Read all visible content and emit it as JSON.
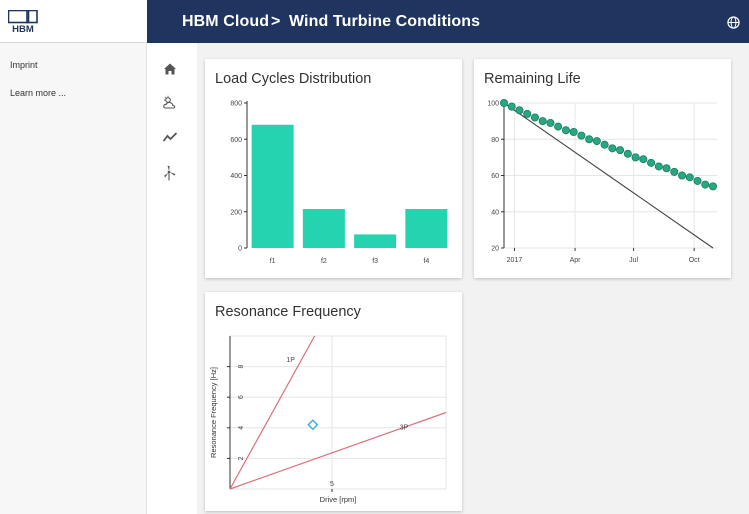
{
  "header": {
    "logo_text": "HBM",
    "breadcrumb": [
      "HBM Cloud",
      "Wind Turbine Conditions"
    ],
    "separator": ">",
    "bar_color": "#1f3560",
    "icons": [
      "globe-icon"
    ]
  },
  "sidebar": {
    "links": [
      {
        "label": "Imprint"
      },
      {
        "label": "Learn more ..."
      }
    ]
  },
  "nav": {
    "icons": [
      "home-icon",
      "weather-icon",
      "trend-icon",
      "wind-turbine-icon"
    ]
  },
  "cards": {
    "load_cycles": {
      "title": "Load Cycles Distribution"
    },
    "remaining_life": {
      "title": "Remaining Life"
    },
    "resonance": {
      "title": "Resonance Frequency"
    }
  },
  "chart_data": [
    {
      "type": "bar",
      "title": "Load Cycles Distribution",
      "categories": [
        "f1",
        "f2",
        "f3",
        "f4"
      ],
      "values": [
        680,
        215,
        75,
        215
      ],
      "ylim": [
        0,
        800
      ],
      "yticks": [
        0,
        200,
        400,
        600,
        800
      ],
      "color": "#26d3b0",
      "grid": false
    },
    {
      "type": "line",
      "title": "Remaining Life",
      "xticks": [
        "2017",
        "Apr",
        "Jul",
        "Oct"
      ],
      "ylim": [
        20,
        100
      ],
      "yticks": [
        20,
        40,
        60,
        80,
        100
      ],
      "grid": true,
      "series": [
        {
          "style": "markers",
          "color": "#26a882",
          "values": [
            100,
            98,
            96,
            94,
            92,
            90,
            89,
            87,
            85,
            84,
            82,
            80,
            79,
            77,
            75,
            74,
            72,
            70,
            69,
            67,
            65,
            64,
            62,
            60,
            59,
            57,
            55,
            54
          ]
        },
        {
          "style": "line",
          "color": "#444444",
          "points": [
            [
              0,
              100
            ],
            [
              27,
              20
            ]
          ]
        }
      ]
    },
    {
      "type": "scatter",
      "title": "Resonance Frequency",
      "xlabel": "Drive [rpm]",
      "ylabel": "Resonance Frequency [Hz]",
      "xticks": [
        5
      ],
      "yticks": [
        2,
        4,
        6,
        8
      ],
      "xlim": [
        0,
        12
      ],
      "ylim": [
        0,
        10
      ],
      "grid": true,
      "lines": [
        {
          "name": "1P",
          "color": "#d9707e",
          "points": [
            [
              0,
              0
            ],
            [
              4.7,
              10
            ]
          ]
        },
        {
          "name": "3P",
          "color": "#d9707e",
          "points": [
            [
              0,
              0
            ],
            [
              12,
              5
            ]
          ]
        }
      ],
      "markers": [
        {
          "x": 4.6,
          "y": 4.2,
          "shape": "diamond",
          "color": "#39aee0"
        }
      ]
    }
  ]
}
